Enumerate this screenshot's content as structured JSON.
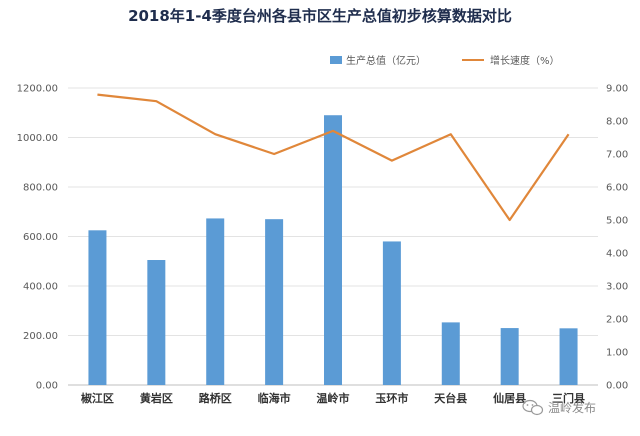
{
  "chart_data": {
    "type": "bar",
    "title": "2018年1-4季度台州各县市区生产总值初步核算数据对比",
    "categories": [
      "椒江区",
      "黄岩区",
      "路桥区",
      "临海市",
      "温岭市",
      "玉环市",
      "天台县",
      "仙居县",
      "三门县"
    ],
    "series": [
      {
        "name": "生产总值（亿元）",
        "type": "bar",
        "axis": "left",
        "color": "#5b9bd5",
        "values": [
          625,
          505,
          673,
          670,
          1090,
          580,
          253,
          230,
          229
        ]
      },
      {
        "name": "增长速度（%）",
        "type": "line",
        "axis": "right",
        "color": "#e0873a",
        "values": [
          8.8,
          8.6,
          7.6,
          7.0,
          7.7,
          6.8,
          7.6,
          5.0,
          7.6
        ]
      }
    ],
    "ylim_left": [
      0,
      1200
    ],
    "yticks_left": [
      "0.00",
      "200.00",
      "400.00",
      "600.00",
      "800.00",
      "1000.00",
      "1200.00"
    ],
    "ylim_right": [
      0,
      9
    ],
    "yticks_right": [
      "0.00",
      "1.00",
      "2.00",
      "3.00",
      "4.00",
      "5.00",
      "6.00",
      "7.00",
      "8.00",
      "9.00"
    ],
    "grid": true,
    "legend_position": "top-right"
  },
  "watermark": {
    "text": "温岭发布",
    "icon": "wechat-icon"
  }
}
